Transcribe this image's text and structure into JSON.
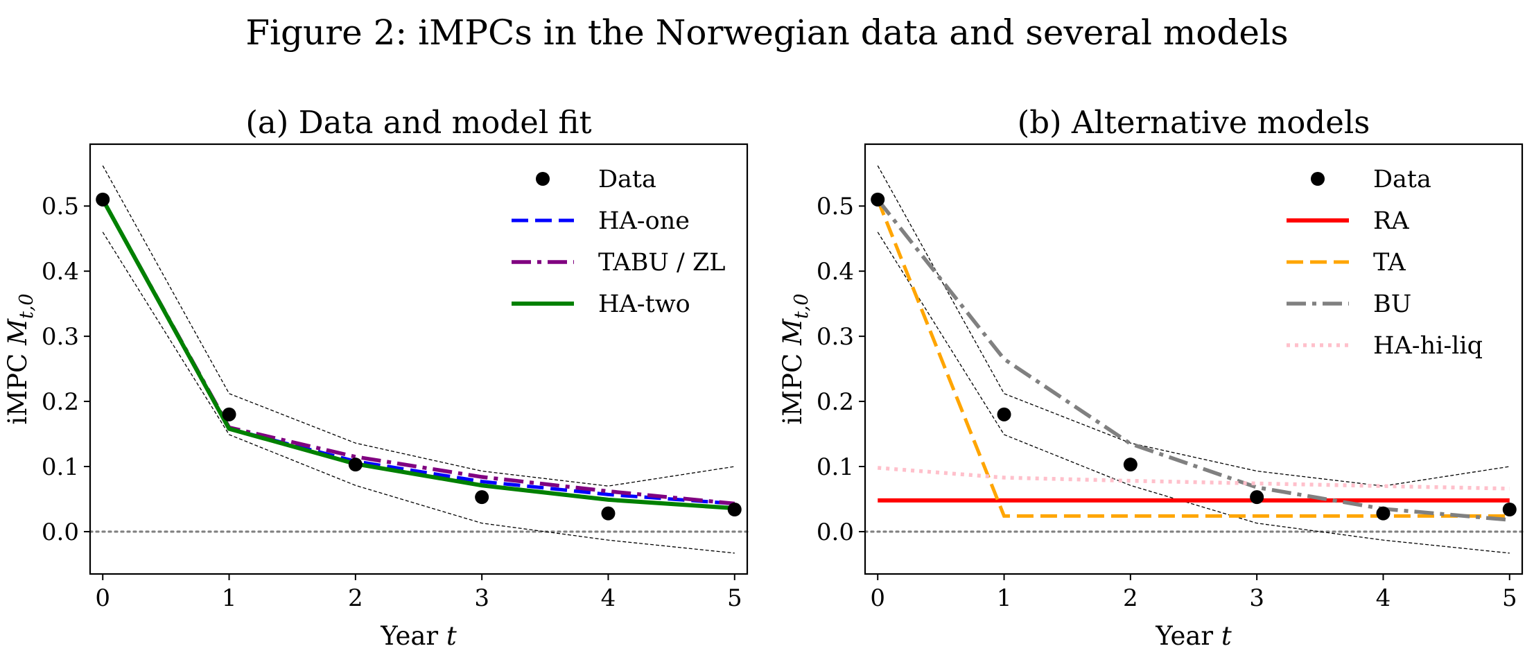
{
  "figure_title": "Figure 2: iMPCs in the Norwegian data and several models",
  "chart_data": [
    {
      "type": "line",
      "title": "(a) Data and model fit",
      "xlabel": "Year t",
      "ylabel": "iMPC M_t,0",
      "xlim": [
        -0.1,
        5.1
      ],
      "ylim": [
        -0.065,
        0.595
      ],
      "xticks": [
        "0",
        "1",
        "2",
        "3",
        "4",
        "5"
      ],
      "yticks": [
        "0.0",
        "0.1",
        "0.2",
        "0.3",
        "0.4",
        "0.5"
      ],
      "legend_position": "top-right",
      "grid": false,
      "zero_line": true,
      "x": [
        0,
        1,
        2,
        3,
        4,
        5
      ],
      "data_points": {
        "name": "Data",
        "values": [
          0.51,
          0.18,
          0.103,
          0.053,
          0.028,
          0.034
        ]
      },
      "confidence_band": {
        "upper": [
          0.562,
          0.212,
          0.136,
          0.093,
          0.07,
          0.1
        ],
        "lower": [
          0.46,
          0.149,
          0.071,
          0.013,
          -0.013,
          -0.033
        ]
      },
      "series": [
        {
          "name": "HA-one",
          "color": "#0000ff",
          "dash": "dashed",
          "values": [
            0.51,
            0.158,
            0.108,
            0.077,
            0.057,
            0.043
          ]
        },
        {
          "name": "TABU / ZL",
          "color": "#800080",
          "dash": "dashdot",
          "values": [
            0.51,
            0.16,
            0.115,
            0.084,
            0.062,
            0.043
          ]
        },
        {
          "name": "HA-two",
          "color": "#008000",
          "dash": "solid",
          "values": [
            0.51,
            0.158,
            0.104,
            0.071,
            0.049,
            0.036
          ]
        }
      ]
    },
    {
      "type": "line",
      "title": "(b) Alternative models",
      "xlabel": "Year t",
      "ylabel": "iMPC M_t,0",
      "xlim": [
        -0.1,
        5.1
      ],
      "ylim": [
        -0.065,
        0.595
      ],
      "xticks": [
        "0",
        "1",
        "2",
        "3",
        "4",
        "5"
      ],
      "yticks": [
        "0.0",
        "0.1",
        "0.2",
        "0.3",
        "0.4",
        "0.5"
      ],
      "legend_position": "top-right",
      "grid": false,
      "zero_line": true,
      "x": [
        0,
        1,
        2,
        3,
        4,
        5
      ],
      "data_points": {
        "name": "Data",
        "values": [
          0.51,
          0.18,
          0.103,
          0.053,
          0.028,
          0.034
        ]
      },
      "confidence_band": {
        "upper": [
          0.562,
          0.212,
          0.136,
          0.093,
          0.07,
          0.1
        ],
        "lower": [
          0.46,
          0.149,
          0.071,
          0.013,
          -0.013,
          -0.033
        ]
      },
      "series": [
        {
          "name": "RA",
          "color": "#ff0000",
          "dash": "solid",
          "values": [
            0.048,
            0.048,
            0.048,
            0.048,
            0.048,
            0.048
          ]
        },
        {
          "name": "TA",
          "color": "#ffa500",
          "dash": "dashed",
          "values": [
            0.51,
            0.024,
            0.024,
            0.024,
            0.024,
            0.024
          ]
        },
        {
          "name": "BU",
          "color": "#808080",
          "dash": "dashdot",
          "values": [
            0.51,
            0.265,
            0.135,
            0.068,
            0.035,
            0.018
          ]
        },
        {
          "name": "HA-hi-liq",
          "color": "#ffc0cb",
          "dash": "dotted",
          "values": [
            0.098,
            0.083,
            0.078,
            0.074,
            0.07,
            0.066
          ]
        }
      ]
    }
  ]
}
